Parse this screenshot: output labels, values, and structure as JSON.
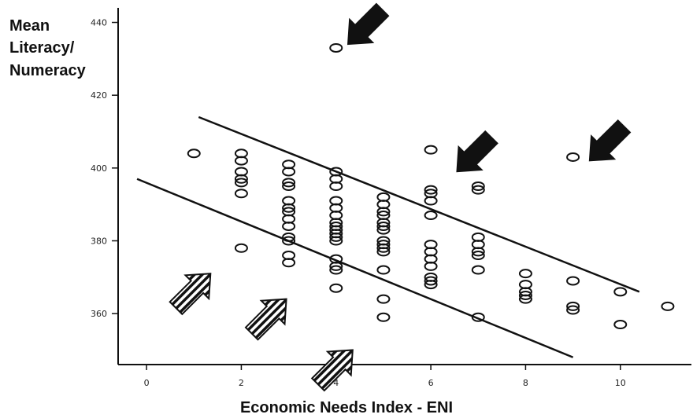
{
  "chart_data": {
    "type": "scatter",
    "title": "",
    "ylabel_lines": [
      "Mean",
      "Literacy/",
      "Numeracy"
    ],
    "xlabel": "Economic Needs Index - ENI",
    "xlim": [
      -0.6,
      11.5
    ],
    "ylim": [
      346,
      444
    ],
    "xticks": [
      0,
      2,
      4,
      6,
      8,
      10
    ],
    "yticks": [
      360,
      380,
      400,
      420,
      440
    ],
    "grid": false,
    "points": [
      {
        "x": 1,
        "y": 404
      },
      {
        "x": 2,
        "y": 404
      },
      {
        "x": 2,
        "y": 402
      },
      {
        "x": 2,
        "y": 399
      },
      {
        "x": 2,
        "y": 397
      },
      {
        "x": 2,
        "y": 396
      },
      {
        "x": 2,
        "y": 393
      },
      {
        "x": 2,
        "y": 378
      },
      {
        "x": 3,
        "y": 401
      },
      {
        "x": 3,
        "y": 399
      },
      {
        "x": 3,
        "y": 396
      },
      {
        "x": 3,
        "y": 395
      },
      {
        "x": 3,
        "y": 391
      },
      {
        "x": 3,
        "y": 389
      },
      {
        "x": 3,
        "y": 388
      },
      {
        "x": 3,
        "y": 386
      },
      {
        "x": 3,
        "y": 384
      },
      {
        "x": 3,
        "y": 381
      },
      {
        "x": 3,
        "y": 380
      },
      {
        "x": 3,
        "y": 376
      },
      {
        "x": 3,
        "y": 374
      },
      {
        "x": 4,
        "y": 399
      },
      {
        "x": 4,
        "y": 397
      },
      {
        "x": 4,
        "y": 395
      },
      {
        "x": 4,
        "y": 391
      },
      {
        "x": 4,
        "y": 389
      },
      {
        "x": 4,
        "y": 387
      },
      {
        "x": 4,
        "y": 385
      },
      {
        "x": 4,
        "y": 384
      },
      {
        "x": 4,
        "y": 383
      },
      {
        "x": 4,
        "y": 382
      },
      {
        "x": 4,
        "y": 381
      },
      {
        "x": 4,
        "y": 380
      },
      {
        "x": 4,
        "y": 375
      },
      {
        "x": 4,
        "y": 373
      },
      {
        "x": 4,
        "y": 372
      },
      {
        "x": 4,
        "y": 367
      },
      {
        "x": 4,
        "y": 433
      },
      {
        "x": 5,
        "y": 392
      },
      {
        "x": 5,
        "y": 390
      },
      {
        "x": 5,
        "y": 388
      },
      {
        "x": 5,
        "y": 387
      },
      {
        "x": 5,
        "y": 385
      },
      {
        "x": 5,
        "y": 384
      },
      {
        "x": 5,
        "y": 383
      },
      {
        "x": 5,
        "y": 380
      },
      {
        "x": 5,
        "y": 379
      },
      {
        "x": 5,
        "y": 378
      },
      {
        "x": 5,
        "y": 377
      },
      {
        "x": 5,
        "y": 372
      },
      {
        "x": 5,
        "y": 364
      },
      {
        "x": 5,
        "y": 359
      },
      {
        "x": 6,
        "y": 405
      },
      {
        "x": 6,
        "y": 394
      },
      {
        "x": 6,
        "y": 393
      },
      {
        "x": 6,
        "y": 391
      },
      {
        "x": 6,
        "y": 387
      },
      {
        "x": 6,
        "y": 379
      },
      {
        "x": 6,
        "y": 377
      },
      {
        "x": 6,
        "y": 375
      },
      {
        "x": 6,
        "y": 373
      },
      {
        "x": 6,
        "y": 370
      },
      {
        "x": 6,
        "y": 369
      },
      {
        "x": 6,
        "y": 368
      },
      {
        "x": 7,
        "y": 395
      },
      {
        "x": 7,
        "y": 394
      },
      {
        "x": 7,
        "y": 381
      },
      {
        "x": 7,
        "y": 379
      },
      {
        "x": 7,
        "y": 377
      },
      {
        "x": 7,
        "y": 376
      },
      {
        "x": 7,
        "y": 372
      },
      {
        "x": 7,
        "y": 359
      },
      {
        "x": 8,
        "y": 371
      },
      {
        "x": 8,
        "y": 368
      },
      {
        "x": 8,
        "y": 366
      },
      {
        "x": 8,
        "y": 365
      },
      {
        "x": 8,
        "y": 364
      },
      {
        "x": 9,
        "y": 403
      },
      {
        "x": 9,
        "y": 369
      },
      {
        "x": 9,
        "y": 362
      },
      {
        "x": 9,
        "y": 361
      },
      {
        "x": 10,
        "y": 366
      },
      {
        "x": 10,
        "y": 357
      },
      {
        "x": 11,
        "y": 362
      }
    ],
    "lines": [
      {
        "x1": 1.1,
        "y1": 414,
        "x2": 10.4,
        "y2": 366
      },
      {
        "x1": -0.2,
        "y1": 397,
        "x2": 9.0,
        "y2": 348
      }
    ],
    "arrows_solid": [
      {
        "x": 4.25,
        "y": 434
      },
      {
        "x": 6.55,
        "y": 399
      },
      {
        "x": 9.35,
        "y": 402
      }
    ],
    "arrows_striped": [
      {
        "x": 1.35,
        "y": 371
      },
      {
        "x": 2.95,
        "y": 364
      },
      {
        "x": 4.35,
        "y": 350
      }
    ],
    "colors": {
      "ink": "#111111",
      "background": "#ffffff"
    }
  }
}
